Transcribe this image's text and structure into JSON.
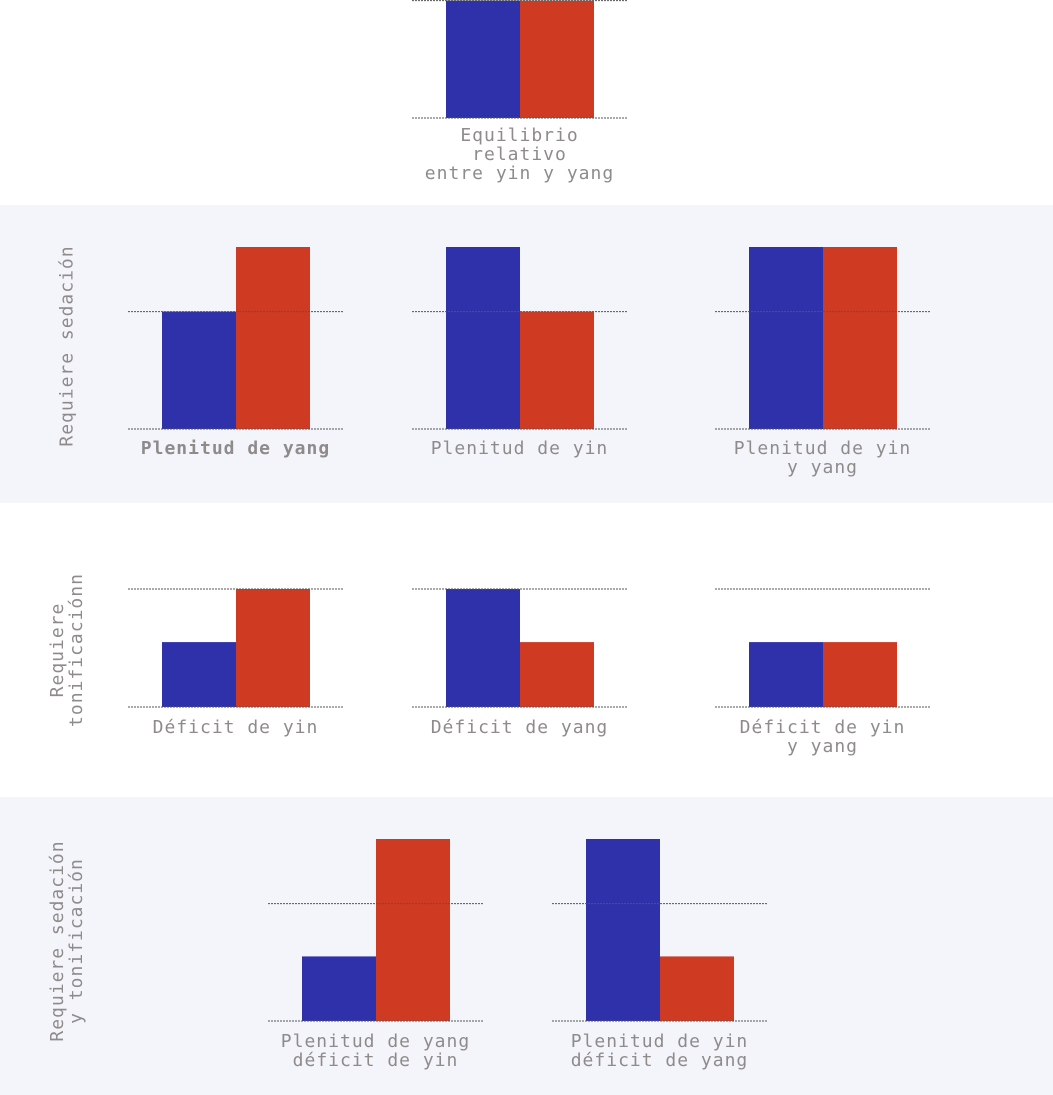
{
  "colors": {
    "yin": "#2e31aa",
    "yang": "#cf3a22",
    "band": "#f3f5fa",
    "text": "#8f8b8b",
    "dashed_line": "#555555"
  },
  "rows": [
    {
      "label": ""
    },
    {
      "label": "Requiere sedación"
    },
    {
      "label": "Requiere\ntonificaciónn"
    },
    {
      "label": "Requiere sedación\ny tonificación"
    }
  ],
  "chart_data": [
    {
      "type": "bar",
      "row": 0,
      "categories": [
        "yin",
        "yang"
      ],
      "values": [
        1,
        1
      ],
      "ylim": [
        0,
        1.55
      ],
      "reference_line": 1,
      "caption": "Equilibrio relativo\nentre yin y yang"
    },
    {
      "type": "bar",
      "row": 1,
      "categories": [
        "yin",
        "yang"
      ],
      "values": [
        1,
        1.55
      ],
      "ylim": [
        0,
        1.55
      ],
      "reference_line": 1,
      "caption": "Plenitud de yang"
    },
    {
      "type": "bar",
      "row": 1,
      "categories": [
        "yin",
        "yang"
      ],
      "values": [
        1.55,
        1
      ],
      "ylim": [
        0,
        1.55
      ],
      "reference_line": 1,
      "caption": "Plenitud de yin"
    },
    {
      "type": "bar",
      "row": 1,
      "categories": [
        "yin",
        "yang"
      ],
      "values": [
        1.55,
        1.55
      ],
      "ylim": [
        0,
        1.55
      ],
      "reference_line": 1,
      "caption": "Plenitud de yin\ny yang"
    },
    {
      "type": "bar",
      "row": 2,
      "categories": [
        "yin",
        "yang"
      ],
      "values": [
        0.55,
        1
      ],
      "ylim": [
        0,
        1
      ],
      "reference_line": 1,
      "caption": "Déficit de yin"
    },
    {
      "type": "bar",
      "row": 2,
      "categories": [
        "yin",
        "yang"
      ],
      "values": [
        1,
        0.55
      ],
      "ylim": [
        0,
        1
      ],
      "reference_line": 1,
      "caption": "Déficit de yang"
    },
    {
      "type": "bar",
      "row": 2,
      "categories": [
        "yin",
        "yang"
      ],
      "values": [
        0.55,
        0.55
      ],
      "ylim": [
        0,
        1
      ],
      "reference_line": 1,
      "caption": "Déficit de yin\ny yang"
    },
    {
      "type": "bar",
      "row": 3,
      "categories": [
        "yin",
        "yang"
      ],
      "values": [
        0.55,
        1.55
      ],
      "ylim": [
        0,
        1.55
      ],
      "reference_line": 1,
      "caption": "Plenitud de yang\ndéficit de yin"
    },
    {
      "type": "bar",
      "row": 3,
      "categories": [
        "yin",
        "yang"
      ],
      "values": [
        1.55,
        0.55
      ],
      "ylim": [
        0,
        1.55
      ],
      "reference_line": 1,
      "caption": "Plenitud de yin\ndéficit de yang"
    }
  ]
}
